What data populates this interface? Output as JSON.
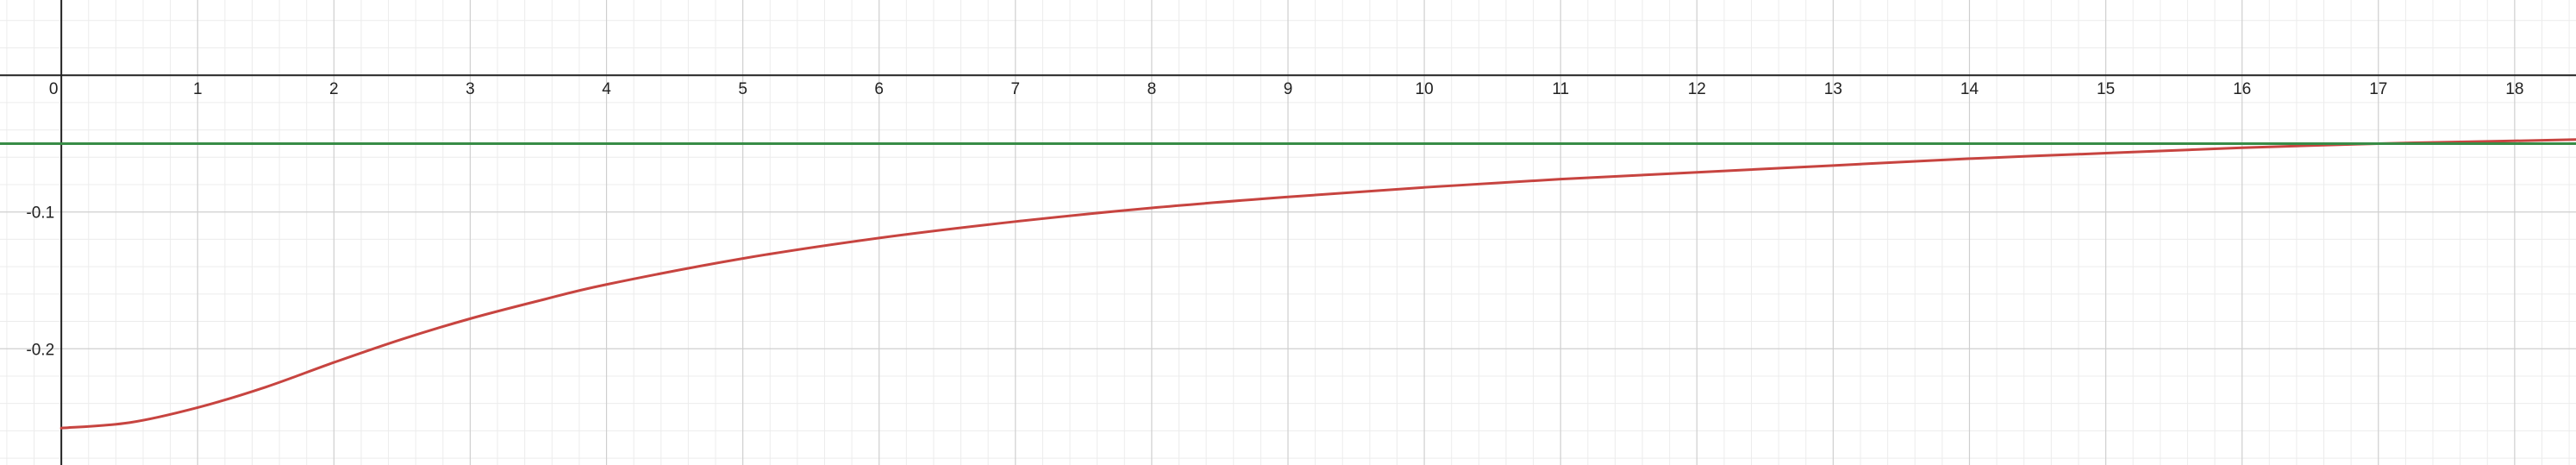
{
  "chart_data": {
    "type": "line",
    "title": "",
    "xlabel": "",
    "ylabel": "",
    "xlim": [
      -0.45,
      18.45
    ],
    "ylim": [
      -0.285,
      0.055
    ],
    "grid": true,
    "x_ticks": [
      "0",
      "1",
      "2",
      "3",
      "4",
      "5",
      "6",
      "7",
      "8",
      "9",
      "10",
      "11",
      "12",
      "13",
      "14",
      "15",
      "16",
      "17",
      "18"
    ],
    "y_ticks": [
      {
        "value": -0.1,
        "label": "-0.1"
      },
      {
        "value": -0.2,
        "label": "-0.2"
      }
    ],
    "series": [
      {
        "color": "#c74440",
        "x": [
          0,
          0.5,
          1,
          1.5,
          2,
          2.5,
          3,
          3.5,
          4,
          5,
          6,
          7,
          8,
          9,
          10,
          11,
          12,
          13,
          14,
          15,
          16,
          17,
          18,
          18.45
        ],
        "y": [
          -0.258,
          -0.254,
          -0.243,
          -0.228,
          -0.21,
          -0.193,
          -0.178,
          -0.165,
          -0.153,
          -0.134,
          -0.119,
          -0.107,
          -0.097,
          -0.089,
          -0.082,
          -0.076,
          -0.071,
          -0.066,
          -0.061,
          -0.057,
          -0.053,
          -0.05,
          -0.048,
          -0.047
        ]
      },
      {
        "color": "#388c46",
        "x": [
          -0.45,
          18.45
        ],
        "y": [
          -0.05,
          -0.05
        ]
      }
    ]
  }
}
